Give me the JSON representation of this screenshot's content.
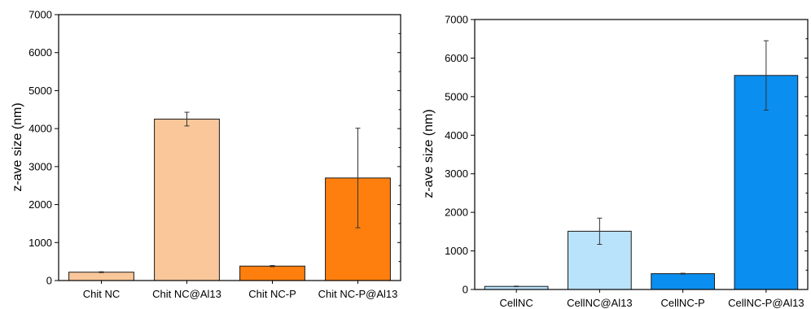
{
  "chart_data": [
    {
      "type": "bar",
      "title": "",
      "xlabel": "",
      "ylabel": "z-ave size (nm)",
      "ylim": [
        0,
        7000
      ],
      "yticks": [
        0,
        1000,
        2000,
        3000,
        4000,
        5000,
        6000,
        7000
      ],
      "categories": [
        "Chit NC",
        "Chit NC@Al13",
        "Chit NC-P",
        "Chit NC-P@Al13"
      ],
      "values": [
        220,
        4250,
        380,
        2700
      ],
      "errors": [
        12,
        180,
        15,
        1310
      ],
      "bar_colors": [
        "#f9c79a",
        "#f9c79a",
        "#ff7f0e",
        "#ff7f0e"
      ],
      "grid": false,
      "error_bars": true
    },
    {
      "type": "bar",
      "title": "",
      "xlabel": "",
      "ylabel": "z-ave size (nm)",
      "ylim": [
        0,
        7000
      ],
      "yticks": [
        0,
        1000,
        2000,
        3000,
        4000,
        5000,
        6000,
        7000
      ],
      "categories": [
        "CellNC",
        "CellNC@Al13",
        "CellNC-P",
        "CellNC-P@Al13"
      ],
      "values": [
        80,
        1510,
        410,
        5550
      ],
      "errors": [
        8,
        340,
        12,
        900
      ],
      "bar_colors": [
        "#b9e2fb",
        "#b9e2fb",
        "#0a8eef",
        "#0a8eef"
      ],
      "grid": false,
      "error_bars": true
    }
  ]
}
